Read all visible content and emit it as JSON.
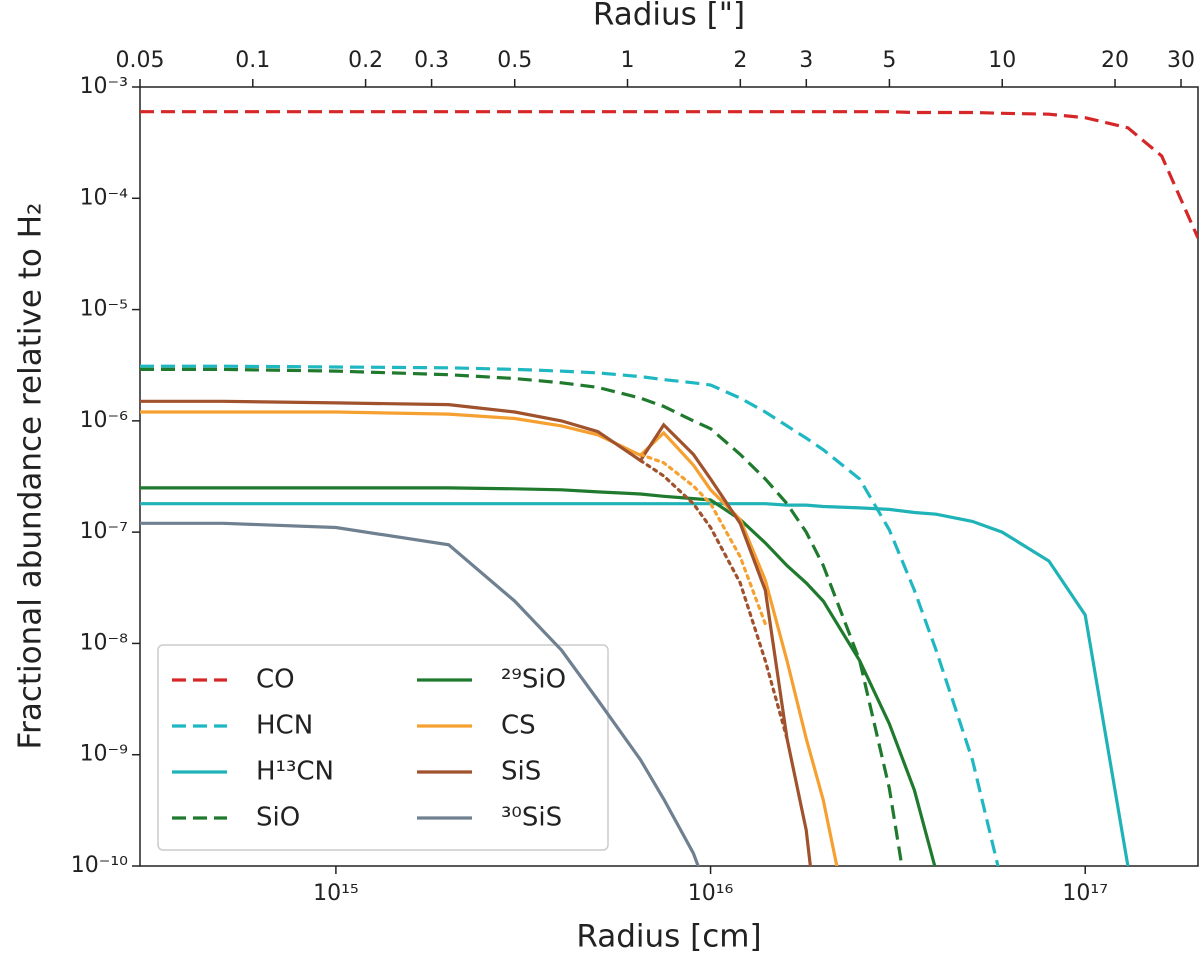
{
  "chart_data": {
    "type": "line",
    "xlabel": "Radius [cm]",
    "x2label": "Radius [\"]",
    "ylabel": "Fractional abundance relative to H₂",
    "xscale": "log",
    "yscale": "log",
    "legend": "lower left",
    "xlim": [
      300000000000000.0,
      2e+17
    ],
    "xticks": [
      {
        "value": 1000000000000000.0,
        "label": "10¹⁵"
      },
      {
        "value": 1e+16,
        "label": "10¹⁶"
      },
      {
        "value": 1e+17,
        "label": "10¹⁷"
      }
    ],
    "x2lim": [
      0.05,
      33.3
    ],
    "x2ticks": [
      0.05,
      0.1,
      0.2,
      0.3,
      0.5,
      1,
      2,
      3,
      5,
      10,
      20,
      30
    ],
    "ylim": [
      1e-10,
      0.001
    ],
    "yticks": [
      {
        "value": 1e-10,
        "label": "10⁻¹⁰"
      },
      {
        "value": 1e-09,
        "label": "10⁻⁹"
      },
      {
        "value": 1e-08,
        "label": "10⁻⁸"
      },
      {
        "value": 1e-07,
        "label": "10⁻⁷"
      },
      {
        "value": 1e-06,
        "label": "10⁻⁶"
      },
      {
        "value": 1e-05,
        "label": "10⁻⁵"
      },
      {
        "value": 0.0001,
        "label": "10⁻⁴"
      },
      {
        "value": 0.001,
        "label": "10⁻³"
      }
    ],
    "x": [
      300000000000000.0,
      500000000000000.0,
      1000000000000000.0,
      2000000000000000.0,
      3000000000000000.0,
      4000000000000000.0,
      5000000000000000.0,
      6500000000000000.0,
      7500000000000000.0,
      9000000000000000.0,
      1e+16,
      1.2e+16,
      1.4e+16,
      1.6e+16,
      1.8e+16,
      2e+16,
      2.5e+16,
      3e+16,
      3.5e+16,
      4e+16,
      5e+16,
      6e+16,
      8e+16,
      1e+17,
      1.3e+17,
      1.6e+17,
      2e+17
    ],
    "series": [
      {
        "name": "CO",
        "color": "#d62728",
        "dash": "dashed",
        "values": [
          0.0006,
          0.0006,
          0.0006,
          0.0006,
          0.0006,
          0.0006,
          0.0006,
          0.0006,
          0.0006,
          0.0006,
          0.0006,
          0.0006,
          0.0006,
          0.0006,
          0.0006,
          0.0006,
          0.0006,
          0.0006,
          0.00059,
          0.00059,
          0.00059,
          0.00058,
          0.00057,
          0.00053,
          0.00043,
          0.00024,
          4.4e-05
        ]
      },
      {
        "name": "HCN",
        "color": "#1fb8c2",
        "dash": "dashed",
        "values": [
          3.1e-06,
          3.1e-06,
          3.05e-06,
          3e-06,
          2.9e-06,
          2.8e-06,
          2.7e-06,
          2.5e-06,
          2.35e-06,
          2.2e-06,
          2.1e-06,
          1.6e-06,
          1.2e-06,
          9e-07,
          7e-07,
          5.5e-07,
          3e-07,
          1.05e-07,
          3e-08,
          8.7e-09,
          9e-10,
          7e-11,
          null,
          null,
          null,
          null,
          null
        ]
      },
      {
        "name": "H¹³CN",
        "color": "#1fb3b8",
        "dash": "solid",
        "values": [
          1.8e-07,
          1.8e-07,
          1.8e-07,
          1.8e-07,
          1.8e-07,
          1.8e-07,
          1.8e-07,
          1.8e-07,
          1.8e-07,
          1.8e-07,
          1.8e-07,
          1.8e-07,
          1.8e-07,
          1.75e-07,
          1.75e-07,
          1.7e-07,
          1.65e-07,
          1.6e-07,
          1.5e-07,
          1.45e-07,
          1.25e-07,
          1e-07,
          5.5e-08,
          1.8e-08,
          1e-10,
          null,
          null
        ]
      },
      {
        "name": "SiO",
        "color": "#1f7a2e",
        "dash": "dashed",
        "values": [
          2.9e-06,
          2.9e-06,
          2.8e-06,
          2.6e-06,
          2.4e-06,
          2.2e-06,
          2e-06,
          1.6e-06,
          1.35e-06,
          1e-06,
          8.5e-07,
          5e-07,
          3e-07,
          1.8e-07,
          1e-07,
          5e-08,
          7e-09,
          5e-10,
          2e-11,
          null,
          null,
          null,
          null,
          null,
          null,
          null,
          null
        ]
      },
      {
        "name": "²⁹SiO",
        "color": "#1f7a2e",
        "dash": "solid",
        "values": [
          2.5e-07,
          2.5e-07,
          2.5e-07,
          2.5e-07,
          2.45e-07,
          2.4e-07,
          2.3e-07,
          2.2e-07,
          2.1e-07,
          2e-07,
          1.95e-07,
          1.3e-07,
          8e-08,
          5e-08,
          3.5e-08,
          2.4e-08,
          7e-09,
          1.9e-09,
          4.8e-10,
          9e-11,
          null,
          null,
          null,
          null,
          null,
          null,
          null
        ]
      },
      {
        "name": "CS",
        "color": "#f5a030",
        "dash": "solid",
        "values": [
          1.2e-06,
          1.2e-06,
          1.2e-06,
          1.15e-06,
          1.05e-06,
          9e-07,
          7.5e-07,
          4.9e-07,
          7.8e-07,
          4e-07,
          2.4e-07,
          1.3e-07,
          3.7e-08,
          7e-09,
          1.4e-09,
          3.9e-10,
          1e-11,
          null,
          null,
          null,
          null,
          null,
          null,
          null,
          null,
          null,
          null
        ]
      },
      {
        "name": "SiS",
        "color": "#a0522d",
        "dash": "solid",
        "values": [
          1.5e-06,
          1.5e-06,
          1.45e-06,
          1.4e-06,
          1.2e-06,
          1e-06,
          8e-07,
          4.4e-07,
          9.2e-07,
          5e-07,
          3e-07,
          1.2e-07,
          3e-08,
          1.4e-09,
          2.1e-10,
          1e-11,
          null,
          null,
          null,
          null,
          null,
          null,
          null,
          null,
          null,
          null,
          null
        ]
      },
      {
        "name": "³⁰SiS",
        "color": "#6f8090",
        "dash": "solid",
        "values": [
          1.2e-07,
          1.2e-07,
          1.1e-07,
          7.7e-08,
          2.4e-08,
          8.7e-09,
          3.1e-09,
          9e-10,
          4e-10,
          1.3e-10,
          5e-11,
          null,
          null,
          null,
          null,
          null,
          null,
          null,
          null,
          null,
          null,
          null,
          null,
          null,
          null,
          null,
          null
        ]
      },
      {
        "color": "#f5a030",
        "dash": "dotted",
        "values": [
          null,
          null,
          null,
          null,
          null,
          null,
          null,
          5e-07,
          4.2e-07,
          2.6e-07,
          1.8e-07,
          6e-08,
          1.5e-08,
          null,
          null,
          null,
          null,
          null,
          null,
          null,
          null,
          null,
          null,
          null,
          null,
          null,
          null
        ]
      },
      {
        "color": "#a0522d",
        "dash": "dotted",
        "values": [
          null,
          null,
          null,
          null,
          null,
          null,
          null,
          4.4e-07,
          3.2e-07,
          1.8e-07,
          1.1e-07,
          3.5e-08,
          7e-09,
          1.4e-09,
          null,
          null,
          null,
          null,
          null,
          null,
          null,
          null,
          null,
          null,
          null,
          null,
          null
        ]
      }
    ]
  }
}
